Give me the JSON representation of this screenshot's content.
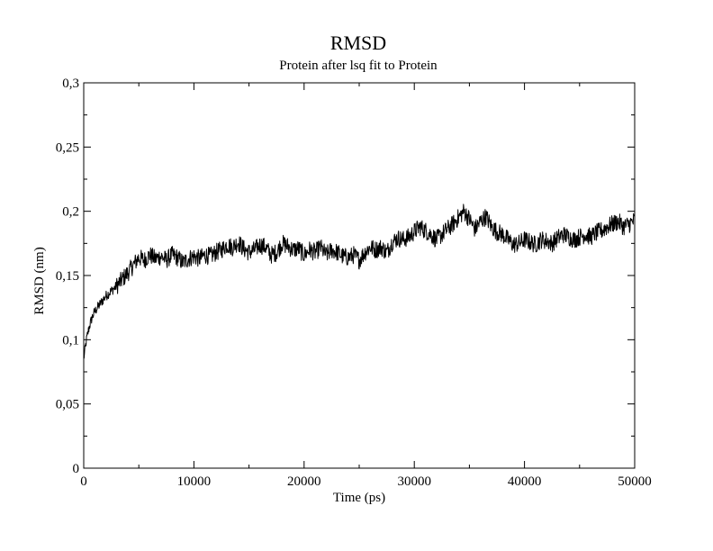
{
  "chart_data": {
    "type": "line",
    "title": "RMSD",
    "subtitle": "Protein after lsq fit to Protein",
    "xlabel": "Time (ps)",
    "ylabel": "RMSD (nm)",
    "xlim": [
      0,
      50000
    ],
    "ylim": [
      0,
      0.3
    ],
    "x_ticks": [
      0,
      10000,
      20000,
      30000,
      40000,
      50000
    ],
    "x_tick_labels": [
      "0",
      "10000",
      "20000",
      "30000",
      "40000",
      "50000"
    ],
    "y_ticks": [
      0,
      0.05,
      0.1,
      0.15,
      0.2,
      0.25,
      0.3
    ],
    "y_tick_labels": [
      "0",
      "0,05",
      "0,1",
      "0,15",
      "0,2",
      "0,25",
      "0,3"
    ],
    "grid": false,
    "legend": "none",
    "series_color": "#000000",
    "series": [
      {
        "x": [
          0,
          250,
          500,
          750,
          1000,
          1500,
          2000,
          2500,
          3000,
          3500,
          4000,
          4500,
          5000,
          5500,
          6000,
          6500,
          7000,
          7500,
          8000,
          8500,
          9000,
          9500,
          10000,
          10500,
          11000,
          11500,
          12000,
          12500,
          13000,
          13500,
          14000,
          14500,
          15000,
          15500,
          16000,
          16500,
          17000,
          17500,
          18000,
          18500,
          19000,
          19500,
          20000,
          20500,
          21000,
          21500,
          22000,
          22500,
          23000,
          23500,
          24000,
          24500,
          25000,
          25500,
          26000,
          26500,
          27000,
          27500,
          28000,
          28500,
          29000,
          29500,
          30000,
          30500,
          31000,
          31500,
          32000,
          32500,
          33000,
          33500,
          34000,
          34500,
          35000,
          35500,
          36000,
          36500,
          37000,
          37500,
          38000,
          38500,
          39000,
          39500,
          40000,
          40500,
          41000,
          41500,
          42000,
          42500,
          43000,
          43500,
          44000,
          44500,
          45000,
          45500,
          46000,
          46500,
          47000,
          47500,
          48000,
          48500,
          49000,
          49500,
          50000
        ],
        "values": [
          0.085,
          0.1,
          0.11,
          0.117,
          0.122,
          0.128,
          0.134,
          0.138,
          0.142,
          0.147,
          0.152,
          0.158,
          0.164,
          0.162,
          0.166,
          0.163,
          0.165,
          0.162,
          0.166,
          0.164,
          0.16,
          0.163,
          0.165,
          0.163,
          0.166,
          0.165,
          0.168,
          0.17,
          0.174,
          0.172,
          0.176,
          0.171,
          0.168,
          0.17,
          0.174,
          0.172,
          0.166,
          0.168,
          0.175,
          0.173,
          0.17,
          0.171,
          0.166,
          0.17,
          0.168,
          0.172,
          0.166,
          0.17,
          0.168,
          0.165,
          0.164,
          0.166,
          0.162,
          0.168,
          0.172,
          0.17,
          0.172,
          0.168,
          0.176,
          0.179,
          0.178,
          0.18,
          0.184,
          0.188,
          0.185,
          0.182,
          0.178,
          0.182,
          0.186,
          0.19,
          0.195,
          0.2,
          0.194,
          0.186,
          0.192,
          0.196,
          0.188,
          0.184,
          0.182,
          0.178,
          0.174,
          0.175,
          0.178,
          0.176,
          0.174,
          0.178,
          0.177,
          0.175,
          0.179,
          0.182,
          0.18,
          0.178,
          0.18,
          0.182,
          0.18,
          0.183,
          0.185,
          0.188,
          0.19,
          0.192,
          0.188,
          0.19,
          0.193
        ]
      }
    ]
  }
}
